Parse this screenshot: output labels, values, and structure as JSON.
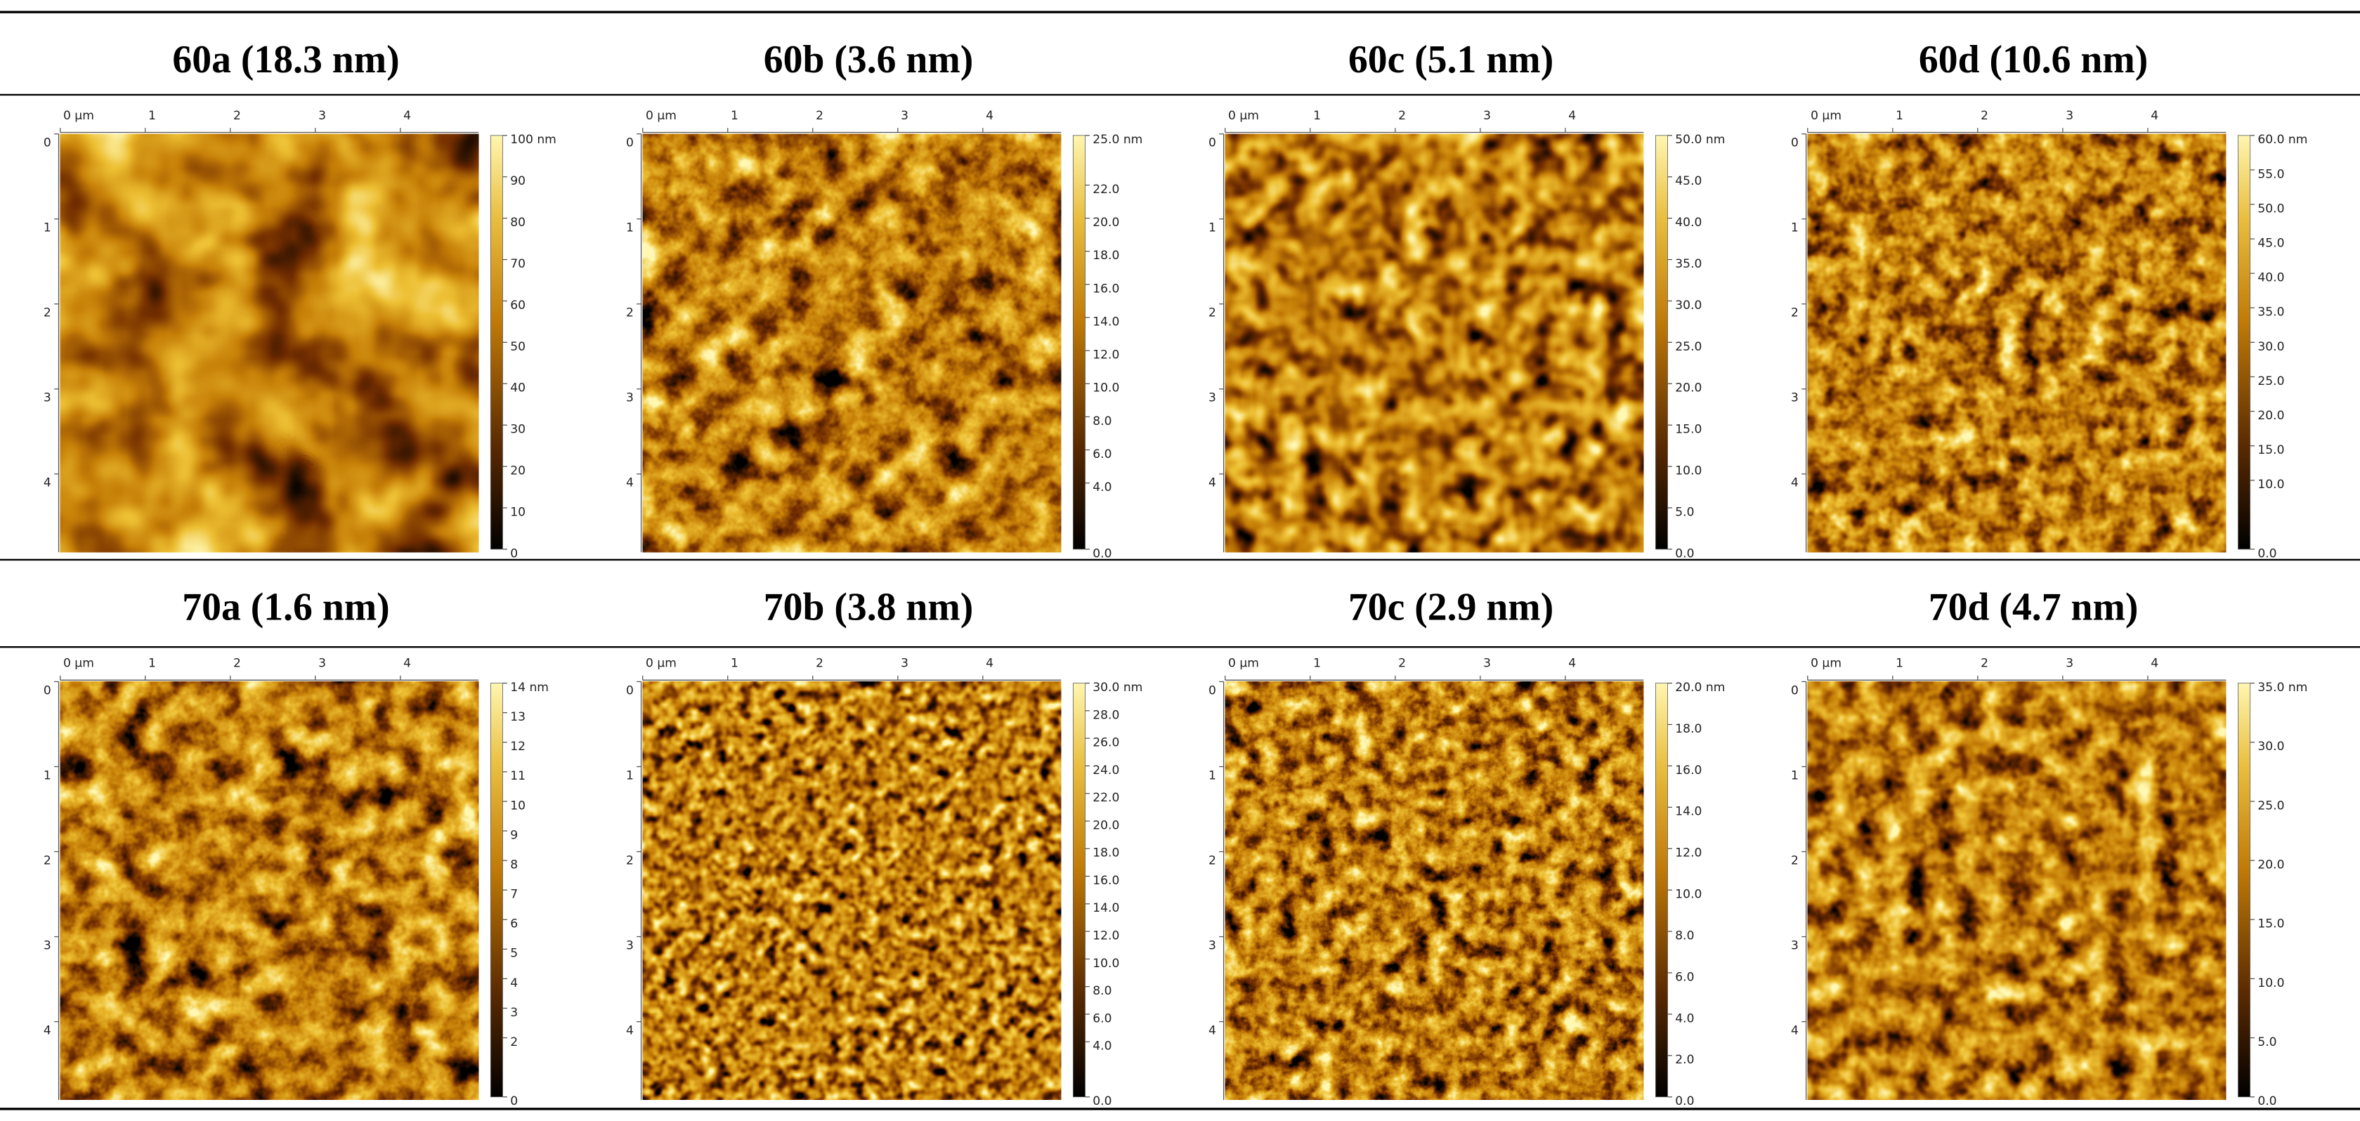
{
  "panels": [
    {
      "title": "60a (18.3 nm)",
      "x_ticks": [
        "0 µm",
        "1",
        "2",
        "3",
        "4"
      ],
      "y_ticks": [
        "0",
        "1",
        "2",
        "3",
        "4"
      ],
      "scale_ticks": [
        "100 nm",
        "90",
        "80",
        "70",
        "60",
        "50",
        "40",
        "30",
        "20",
        "10",
        "0"
      ]
    },
    {
      "title": "60b (3.6 nm)",
      "x_ticks": [
        "0 µm",
        "1",
        "2",
        "3",
        "4"
      ],
      "y_ticks": [
        "0",
        "1",
        "2",
        "3",
        "4"
      ],
      "scale_ticks": [
        "25.0 nm",
        "22.0",
        "20.0",
        "18.0",
        "16.0",
        "14.0",
        "12.0",
        "10.0",
        "8.0",
        "6.0",
        "4.0",
        "0.0"
      ]
    },
    {
      "title": "60c (5.1 nm)",
      "x_ticks": [
        "0 µm",
        "1",
        "2",
        "3",
        "4"
      ],
      "y_ticks": [
        "0",
        "1",
        "2",
        "3",
        "4"
      ],
      "scale_ticks": [
        "50.0 nm",
        "45.0",
        "40.0",
        "35.0",
        "30.0",
        "25.0",
        "20.0",
        "15.0",
        "10.0",
        "5.0",
        "0.0"
      ]
    },
    {
      "title": "60d (10.6 nm)",
      "x_ticks": [
        "0 µm",
        "1",
        "2",
        "3",
        "4"
      ],
      "y_ticks": [
        "0",
        "1",
        "2",
        "3",
        "4"
      ],
      "scale_ticks": [
        "60.0 nm",
        "55.0",
        "50.0",
        "45.0",
        "40.0",
        "35.0",
        "30.0",
        "25.0",
        "20.0",
        "15.0",
        "10.0",
        "0.0"
      ]
    },
    {
      "title": "70a (1.6 nm)",
      "x_ticks": [
        "0 µm",
        "1",
        "2",
        "3",
        "4"
      ],
      "y_ticks": [
        "0",
        "1",
        "2",
        "3",
        "4"
      ],
      "scale_ticks": [
        "14 nm",
        "13",
        "12",
        "11",
        "10",
        "9",
        "8",
        "7",
        "6",
        "5",
        "4",
        "3",
        "2",
        "0"
      ]
    },
    {
      "title": "70b (3.8 nm)",
      "x_ticks": [
        "0 µm",
        "1",
        "2",
        "3",
        "4"
      ],
      "y_ticks": [
        "0",
        "1",
        "2",
        "3",
        "4"
      ],
      "scale_ticks": [
        "30.0 nm",
        "28.0",
        "26.0",
        "24.0",
        "22.0",
        "20.0",
        "18.0",
        "16.0",
        "14.0",
        "12.0",
        "10.0",
        "8.0",
        "6.0",
        "4.0",
        "0.0"
      ]
    },
    {
      "title": "70c (2.9 nm)",
      "x_ticks": [
        "0 µm",
        "1",
        "2",
        "3",
        "4"
      ],
      "y_ticks": [
        "0",
        "1",
        "2",
        "3",
        "4"
      ],
      "scale_ticks": [
        "20.0 nm",
        "18.0",
        "16.0",
        "14.0",
        "12.0",
        "10.0",
        "8.0",
        "6.0",
        "4.0",
        "2.0",
        "0.0"
      ]
    },
    {
      "title": "70d (4.7 nm)",
      "x_ticks": [
        "0 µm",
        "1",
        "2",
        "3",
        "4"
      ],
      "y_ticks": [
        "0",
        "1",
        "2",
        "3",
        "4"
      ],
      "scale_ticks": [
        "35.0 nm",
        "30.0",
        "25.0",
        "20.0",
        "15.0",
        "10.0",
        "5.0",
        "0.0"
      ]
    }
  ]
}
